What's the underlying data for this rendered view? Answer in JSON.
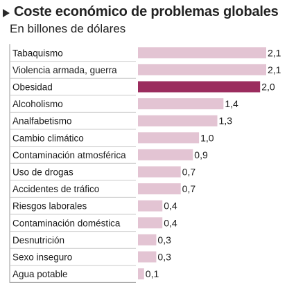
{
  "chart_data": {
    "type": "bar",
    "orientation": "horizontal",
    "title": "Coste económico de problemas globales",
    "subtitle": "En billones de dólares",
    "categories": [
      "Tabaquismo",
      "Violencia armada, guerra",
      "Obesidad",
      "Alcoholismo",
      "Analfabetismo",
      "Cambio climático",
      "Contaminación atmosférica",
      "Uso de drogas",
      "Accidentes de tráfico",
      "Riesgos laborales",
      "Contaminación doméstica",
      "Desnutrición",
      "Sexo inseguro",
      "Agua potable"
    ],
    "values": [
      2.1,
      2.1,
      2.0,
      1.4,
      1.3,
      1.0,
      0.9,
      0.7,
      0.7,
      0.4,
      0.4,
      0.3,
      0.3,
      0.1
    ],
    "value_labels": [
      "2,1",
      "2,1",
      "2,0",
      "1,4",
      "1,3",
      "1,0",
      "0,9",
      "0,7",
      "0,7",
      "0,4",
      "0,4",
      "0,3",
      "0,3",
      "0,1"
    ],
    "highlight_category": "Obesidad",
    "colors": {
      "bar": "#e3c4d3",
      "highlight": "#9b2c5e",
      "frame": "#9a9a9a",
      "separator": "#c9c9c9"
    },
    "xlim": [
      0,
      2.1
    ],
    "grid": false,
    "legend": "none"
  }
}
